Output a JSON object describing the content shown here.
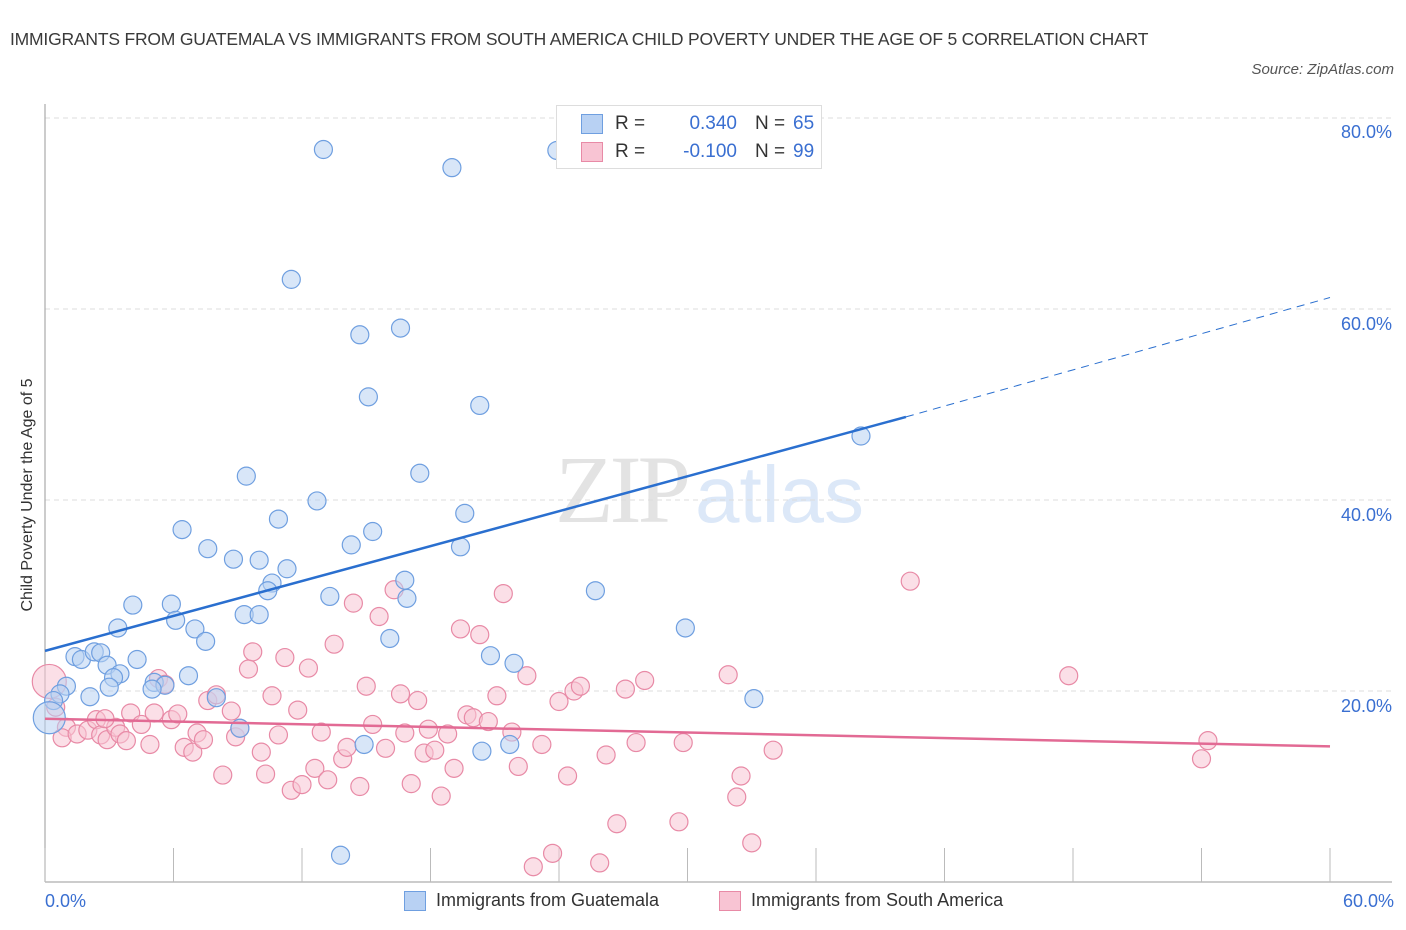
{
  "title": "IMMIGRANTS FROM GUATEMALA VS IMMIGRANTS FROM SOUTH AMERICA CHILD POVERTY UNDER THE AGE OF 5 CORRELATION CHART",
  "source": "Source: ZipAtlas.com",
  "watermark": {
    "zip": "ZIP",
    "atlas": "atlas"
  },
  "legend": {
    "rows": [
      {
        "r_label": "R =",
        "r_value": "0.340",
        "n_label": "N =",
        "n_value": "65"
      },
      {
        "r_label": "R =",
        "r_value": "-0.100",
        "n_label": "N =",
        "n_value": "99"
      }
    ]
  },
  "colors": {
    "guatemala_fill": "#b8d1f3",
    "guatemala_stroke": "#6f9fe0",
    "guatemala_line": "#2a6fcf",
    "south_america_fill": "#f8c4d3",
    "south_america_stroke": "#e88aa6",
    "south_america_line": "#e26a94",
    "axis_label": "#3a6fd1",
    "grid": "#dddddd"
  },
  "chart_data": {
    "type": "scatter",
    "title": "IMMIGRANTS FROM GUATEMALA VS IMMIGRANTS FROM SOUTH AMERICA CHILD POVERTY UNDER THE AGE OF 5 CORRELATION CHART",
    "xlabel": "",
    "ylabel": "Child Poverty Under the Age of 5",
    "xlim": [
      0,
      60
    ],
    "ylim": [
      0,
      80
    ],
    "x_tick_labels": [
      "0.0%",
      "60.0%"
    ],
    "y_ticks": [
      20,
      40,
      60,
      80
    ],
    "y_tick_labels": [
      "20.0%",
      "40.0%",
      "60.0%",
      "80.0%"
    ],
    "grid": true,
    "legend_position": "bottom",
    "series": [
      {
        "name": "Immigrants from Guatemala",
        "R": 0.34,
        "N": 65,
        "trend": {
          "x0": 0,
          "y0": 24.2,
          "x1": 40.2,
          "y1": 48.7,
          "dashed_to_x": 60,
          "dashed_to_y": 61.2
        },
        "points": [
          [
            13.0,
            76.7
          ],
          [
            19.0,
            74.8
          ],
          [
            23.9,
            76.6
          ],
          [
            11.5,
            63.1
          ],
          [
            14.7,
            57.3
          ],
          [
            16.6,
            58.0
          ],
          [
            15.1,
            50.8
          ],
          [
            20.3,
            49.9
          ],
          [
            9.4,
            42.5
          ],
          [
            17.5,
            42.8
          ],
          [
            12.7,
            39.9
          ],
          [
            10.9,
            38.0
          ],
          [
            19.6,
            38.6
          ],
          [
            6.4,
            36.9
          ],
          [
            14.3,
            35.3
          ],
          [
            15.3,
            36.7
          ],
          [
            19.4,
            35.1
          ],
          [
            7.6,
            34.9
          ],
          [
            8.8,
            33.8
          ],
          [
            10.0,
            33.7
          ],
          [
            11.3,
            32.8
          ],
          [
            10.6,
            31.3
          ],
          [
            16.8,
            31.6
          ],
          [
            10.4,
            30.5
          ],
          [
            13.3,
            29.9
          ],
          [
            16.9,
            29.7
          ],
          [
            25.7,
            30.5
          ],
          [
            4.1,
            29.0
          ],
          [
            5.9,
            29.1
          ],
          [
            9.3,
            28.0
          ],
          [
            10.0,
            28.0
          ],
          [
            6.1,
            27.4
          ],
          [
            3.4,
            26.6
          ],
          [
            7.0,
            26.5
          ],
          [
            29.9,
            26.6
          ],
          [
            7.5,
            25.2
          ],
          [
            16.1,
            25.5
          ],
          [
            1.4,
            23.6
          ],
          [
            1.7,
            23.3
          ],
          [
            2.3,
            24.1
          ],
          [
            2.6,
            24.0
          ],
          [
            4.3,
            23.3
          ],
          [
            2.9,
            22.7
          ],
          [
            20.8,
            23.7
          ],
          [
            21.9,
            22.9
          ],
          [
            3.5,
            21.8
          ],
          [
            6.7,
            21.6
          ],
          [
            3.2,
            21.4
          ],
          [
            1.0,
            20.5
          ],
          [
            3.0,
            20.4
          ],
          [
            5.1,
            20.9
          ],
          [
            5.6,
            20.6
          ],
          [
            5.0,
            20.2
          ],
          [
            0.7,
            19.7
          ],
          [
            2.1,
            19.4
          ],
          [
            0.4,
            19.0
          ],
          [
            8.0,
            19.3
          ],
          [
            38.1,
            46.7
          ],
          [
            33.1,
            19.2
          ],
          [
            0.2,
            17.2
          ],
          [
            9.1,
            16.1
          ],
          [
            14.9,
            14.4
          ],
          [
            21.7,
            14.4
          ],
          [
            20.4,
            13.7
          ],
          [
            13.8,
            2.8
          ]
        ]
      },
      {
        "name": "Immigrants from South America",
        "R": -0.1,
        "N": 99,
        "trend": {
          "x0": 0,
          "y0": 17.1,
          "x1": 60,
          "y1": 14.2
        },
        "points": [
          [
            0.2,
            21.0
          ],
          [
            0.5,
            18.3
          ],
          [
            1.0,
            16.2
          ],
          [
            0.8,
            15.1
          ],
          [
            1.5,
            15.5
          ],
          [
            2.0,
            15.9
          ],
          [
            2.4,
            17.0
          ],
          [
            2.6,
            15.4
          ],
          [
            2.9,
            14.9
          ],
          [
            3.3,
            16.2
          ],
          [
            3.5,
            15.5
          ],
          [
            3.8,
            14.8
          ],
          [
            4.0,
            17.7
          ],
          [
            4.5,
            16.5
          ],
          [
            4.9,
            14.4
          ],
          [
            5.1,
            17.7
          ],
          [
            5.3,
            21.3
          ],
          [
            5.6,
            20.7
          ],
          [
            5.9,
            17.0
          ],
          [
            6.2,
            17.6
          ],
          [
            6.5,
            14.1
          ],
          [
            6.9,
            13.6
          ],
          [
            7.1,
            15.6
          ],
          [
            7.4,
            14.9
          ],
          [
            7.6,
            19.0
          ],
          [
            8.0,
            19.6
          ],
          [
            8.3,
            11.2
          ],
          [
            8.7,
            17.9
          ],
          [
            8.9,
            15.2
          ],
          [
            9.1,
            16.1
          ],
          [
            9.5,
            22.3
          ],
          [
            9.7,
            24.1
          ],
          [
            10.1,
            13.6
          ],
          [
            10.3,
            11.3
          ],
          [
            10.6,
            19.5
          ],
          [
            10.9,
            15.4
          ],
          [
            11.2,
            23.5
          ],
          [
            11.5,
            9.6
          ],
          [
            11.8,
            18.0
          ],
          [
            12.3,
            22.4
          ],
          [
            12.6,
            11.9
          ],
          [
            12.9,
            15.7
          ],
          [
            13.2,
            10.7
          ],
          [
            13.5,
            24.9
          ],
          [
            13.9,
            12.9
          ],
          [
            14.1,
            14.1
          ],
          [
            14.4,
            29.2
          ],
          [
            14.7,
            10.0
          ],
          [
            15.0,
            20.5
          ],
          [
            15.3,
            16.5
          ],
          [
            15.6,
            27.8
          ],
          [
            15.9,
            14.0
          ],
          [
            16.3,
            30.6
          ],
          [
            16.6,
            19.7
          ],
          [
            16.8,
            15.6
          ],
          [
            17.1,
            10.3
          ],
          [
            17.4,
            19.0
          ],
          [
            17.7,
            13.5
          ],
          [
            17.9,
            16.0
          ],
          [
            18.2,
            13.8
          ],
          [
            18.5,
            9.0
          ],
          [
            18.8,
            15.5
          ],
          [
            19.1,
            11.9
          ],
          [
            19.4,
            26.5
          ],
          [
            19.7,
            17.5
          ],
          [
            20.0,
            17.2
          ],
          [
            20.3,
            25.9
          ],
          [
            20.7,
            16.8
          ],
          [
            21.1,
            19.5
          ],
          [
            21.4,
            30.2
          ],
          [
            21.8,
            15.7
          ],
          [
            22.1,
            12.1
          ],
          [
            22.5,
            21.6
          ],
          [
            22.8,
            1.6
          ],
          [
            23.2,
            14.4
          ],
          [
            23.7,
            3.0
          ],
          [
            24.0,
            18.9
          ],
          [
            24.4,
            11.1
          ],
          [
            24.7,
            20.0
          ],
          [
            25.0,
            20.5
          ],
          [
            25.9,
            2.0
          ],
          [
            26.2,
            13.3
          ],
          [
            26.7,
            6.1
          ],
          [
            27.1,
            20.2
          ],
          [
            27.6,
            14.6
          ],
          [
            28.0,
            21.1
          ],
          [
            29.6,
            6.3
          ],
          [
            29.8,
            14.6
          ],
          [
            31.9,
            21.7
          ],
          [
            32.3,
            8.9
          ],
          [
            32.5,
            11.1
          ],
          [
            33.0,
            4.1
          ],
          [
            34.0,
            13.8
          ],
          [
            40.4,
            31.5
          ],
          [
            47.8,
            21.6
          ],
          [
            54.0,
            12.9
          ],
          [
            54.3,
            14.8
          ],
          [
            2.8,
            17.1
          ],
          [
            12.0,
            10.2
          ]
        ]
      }
    ]
  },
  "axis": {
    "x_min_label": "0.0%",
    "x_max_label": "60.0%",
    "y_labels": [
      "80.0%",
      "60.0%",
      "40.0%",
      "20.0%"
    ],
    "y_title": "Child Poverty Under the Age of 5"
  },
  "bottom_legend": {
    "items": [
      "Immigrants from Guatemala",
      "Immigrants from South America"
    ]
  }
}
